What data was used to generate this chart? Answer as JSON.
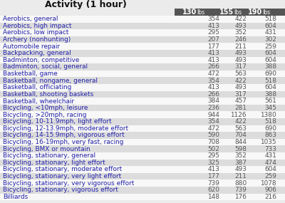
{
  "title": "Activity (1 hour)",
  "header_bold": [
    "130",
    "155",
    "190"
  ],
  "header_light": [
    "lbs",
    "lbs",
    "lbs"
  ],
  "rows": [
    [
      "Aerobics, general",
      "354",
      "422",
      "518"
    ],
    [
      "Aerobics, high impact",
      "413",
      "493",
      "604"
    ],
    [
      "Aerobics, low impact",
      "295",
      "352",
      "431"
    ],
    [
      "Archery (nonhunting)",
      "207",
      "246",
      "302"
    ],
    [
      "Automobile repair",
      "177",
      "211",
      "259"
    ],
    [
      "Backpacking, general",
      "413",
      "493",
      "604"
    ],
    [
      "Badminton, competitive",
      "413",
      "493",
      "604"
    ],
    [
      "Badminton, social, general",
      "266",
      "317",
      "388"
    ],
    [
      "Basketball, game",
      "472",
      "563",
      "690"
    ],
    [
      "Basketball, nongame, general",
      "354",
      "422",
      "518"
    ],
    [
      "Basketball, officiating",
      "413",
      "493",
      "604"
    ],
    [
      "Basketball, shooting baskets",
      "266",
      "317",
      "388"
    ],
    [
      "Basketball, wheelchair",
      "384",
      "457",
      "561"
    ],
    [
      "Bicycling, <10mph, leisure",
      "236",
      "281",
      "345"
    ],
    [
      "Bicycling, >20mph, racing",
      "944",
      "1126",
      "1380"
    ],
    [
      "Bicycling, 10-11.9mph, light effort",
      "354",
      "422",
      "518"
    ],
    [
      "Bicycling, 12-13.9mph, moderate effort",
      "472",
      "563",
      "690"
    ],
    [
      "Bicycling, 14-15.9mph, vigorous effort",
      "590",
      "704",
      "863"
    ],
    [
      "Bicycling, 16-19mph, very fast, racing",
      "708",
      "844",
      "1035"
    ],
    [
      "Bicycling, BMX or mountain",
      "502",
      "598",
      "733"
    ],
    [
      "Bicycling, stationary, general",
      "295",
      "352",
      "431"
    ],
    [
      "Bicycling, stationary, light effort",
      "325",
      "387",
      "474"
    ],
    [
      "Bicycling, stationary, moderate effort",
      "413",
      "493",
      "604"
    ],
    [
      "Bicycling, stationary, very light effort",
      "177",
      "211",
      "259"
    ],
    [
      "Bicycling, stationary, very vigorous effort",
      "739",
      "880",
      "1078"
    ],
    [
      "Bicycling, stationary, vigorous effort",
      "620",
      "739",
      "906"
    ],
    [
      "Billiards",
      "148",
      "176",
      "216"
    ]
  ],
  "bg_color": "#ebebeb",
  "header_bg": "#555555",
  "header_text_color": "#ffffff",
  "row_bg_even": "#f8f8f8",
  "row_bg_odd": "#dcdcdc",
  "activity_color": "#2222aa",
  "value_color": "#555555",
  "title_color": "#111111",
  "font_size": 6.4,
  "header_font_size": 7.0,
  "title_font_size": 9.0
}
